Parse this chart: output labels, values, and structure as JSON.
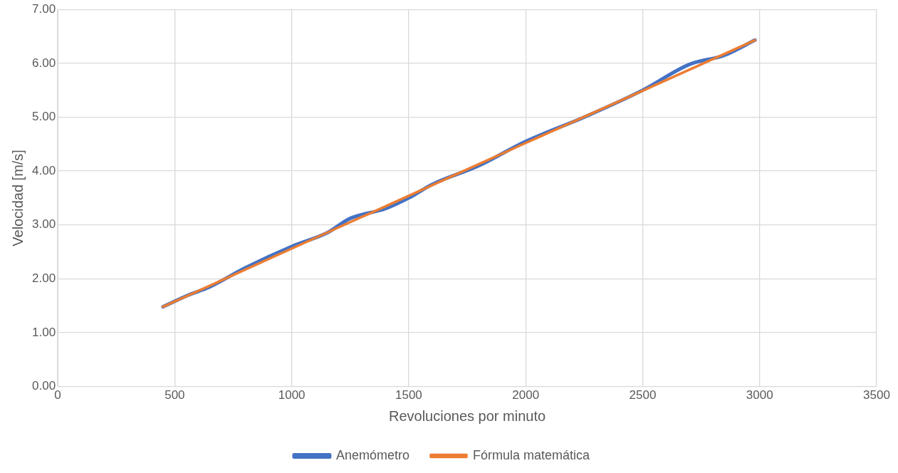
{
  "chart_data": {
    "type": "line",
    "xlabel": "Revoluciones por minuto",
    "ylabel": "Velocidad [m/s]",
    "xlim": [
      0,
      3500
    ],
    "xticks": [
      0,
      500,
      1000,
      1500,
      2000,
      2500,
      3000,
      3500
    ],
    "ylim": [
      0,
      7
    ],
    "yticks": [
      {
        "value": 0,
        "label": "0.00"
      },
      {
        "value": 1,
        "label": "1.00"
      },
      {
        "value": 2,
        "label": "2.00"
      },
      {
        "value": 3,
        "label": "3.00"
      },
      {
        "value": 4,
        "label": "4.00"
      },
      {
        "value": 5,
        "label": "5.00"
      },
      {
        "value": 6,
        "label": "6.00"
      },
      {
        "value": 7,
        "label": "7.00"
      }
    ],
    "grid": true,
    "legend": "bottom",
    "marker": "none",
    "line_style": "solid",
    "series": [
      {
        "name": "Anemómetro",
        "color": "#4472c4",
        "x": [
          450,
          560,
          650,
          800,
          1000,
          1150,
          1250,
          1400,
          1500,
          1600,
          1800,
          2000,
          2250,
          2500,
          2700,
          2850,
          2980
        ],
        "values": [
          1.48,
          1.7,
          1.85,
          2.2,
          2.6,
          2.85,
          3.12,
          3.3,
          3.5,
          3.75,
          4.1,
          4.55,
          5.0,
          5.5,
          5.98,
          6.15,
          6.43
        ]
      },
      {
        "name": "Fórmula matemática",
        "color": "#ed7d31",
        "x": [
          450,
          1000,
          1500,
          2000,
          2500,
          2980
        ],
        "values": [
          1.48,
          2.56,
          3.54,
          4.52,
          5.49,
          6.43
        ]
      }
    ]
  }
}
